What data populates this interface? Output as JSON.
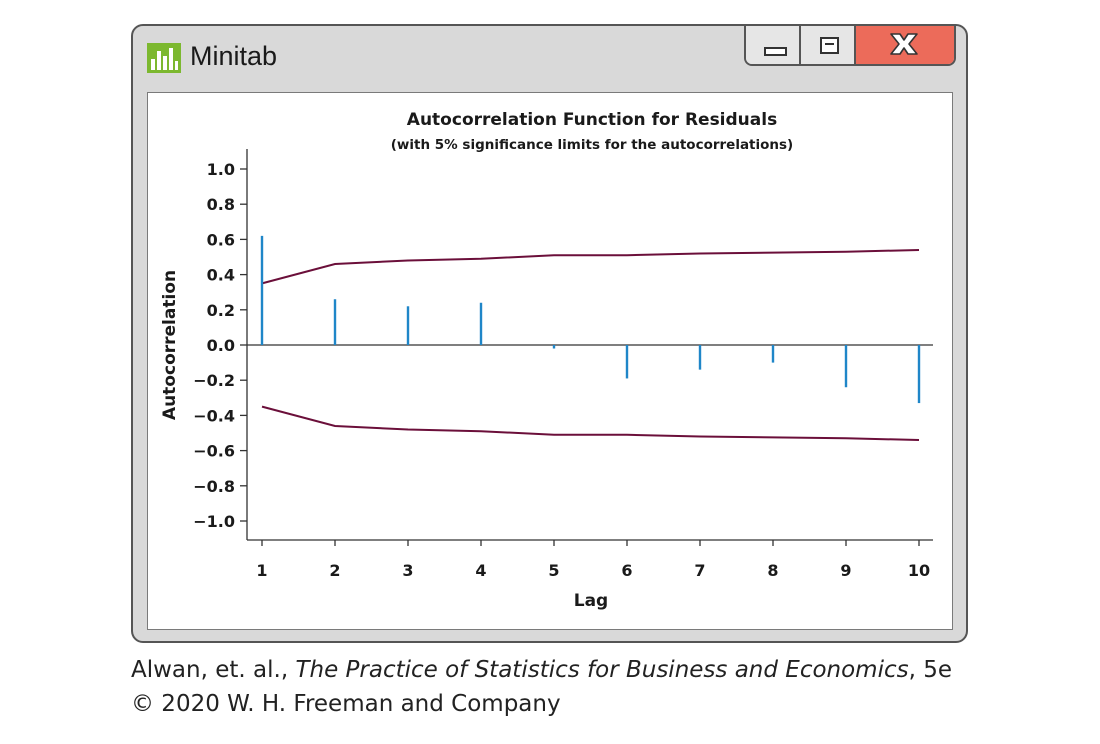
{
  "window": {
    "title": "Minitab",
    "accent_close": "#ec6b5a",
    "icons": {
      "app": "minitab-bar-chart-icon",
      "minimize": "minimize-icon",
      "maximize": "maximize-icon",
      "close": "close-icon"
    }
  },
  "caption": {
    "authors": "Alwan, et. al., ",
    "book": "The Practice of Statistics for Business and Economics",
    "edition": ", 5e",
    "copyright": "© 2020 W. H. Freeman and Company"
  },
  "chart_data": {
    "type": "bar",
    "title": "Autocorrelation Function for Residuals",
    "subtitle": "(with 5% significance limits for the autocorrelations)",
    "xlabel": "Lag",
    "ylabel": "Autocorrelation",
    "x": [
      1,
      2,
      3,
      4,
      5,
      6,
      7,
      8,
      9,
      10
    ],
    "x_tick_labels": [
      "1",
      "2",
      "3",
      "4",
      "5",
      "6",
      "7",
      "8",
      "9",
      "10"
    ],
    "ylim": [
      -1.0,
      1.0
    ],
    "y_ticks": [
      1.0,
      0.8,
      0.6,
      0.4,
      0.2,
      0.0,
      -0.2,
      -0.4,
      -0.6,
      -0.8,
      -1.0
    ],
    "y_tick_labels": [
      "1.0",
      "0.8",
      "0.6",
      "0.4",
      "0.2",
      "0.0",
      "−0.2",
      "−0.4",
      "−0.6",
      "−0.8",
      "−1.0"
    ],
    "series": [
      {
        "values": [
          0.62,
          0.26,
          0.22,
          0.24,
          -0.02,
          -0.19,
          -0.14,
          -0.1,
          -0.24,
          -0.33
        ],
        "color": "#1f86c8"
      }
    ],
    "significance_limits": {
      "upper": [
        0.35,
        0.46,
        0.48,
        0.49,
        0.51,
        0.51,
        0.52,
        0.525,
        0.53,
        0.54
      ],
      "lower": [
        -0.35,
        -0.46,
        -0.48,
        -0.49,
        -0.51,
        -0.51,
        -0.52,
        -0.525,
        -0.53,
        -0.54
      ],
      "color": "#6b0f3a"
    },
    "zero_line": true,
    "grid": false,
    "legend": "none"
  }
}
